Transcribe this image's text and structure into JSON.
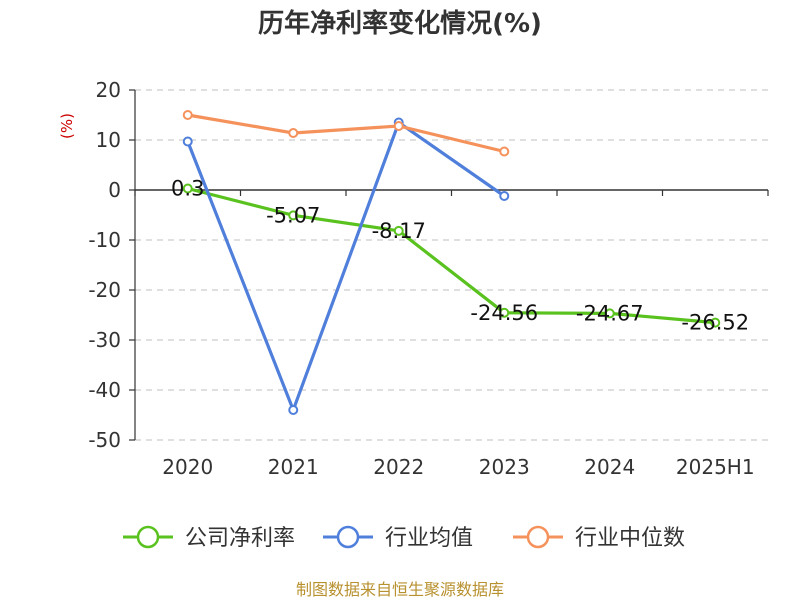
{
  "chart_data": {
    "type": "line",
    "title": "历年净利率变化情况(%)",
    "ylabel": "(%)",
    "categories": [
      "2020",
      "2021",
      "2022",
      "2023",
      "2024",
      "2025H1"
    ],
    "ylim": [
      -50,
      20
    ],
    "yticks": [
      20,
      10,
      0,
      -10,
      -20,
      -30,
      -40,
      -50
    ],
    "grid": true,
    "legend_position": "bottom",
    "series": [
      {
        "name": "公司净利率",
        "color": "#5ac21e",
        "values": [
          0.3,
          -5.07,
          -8.17,
          -24.56,
          -24.67,
          -26.52
        ],
        "labels": [
          "0.3",
          "-5.07",
          "-8.17",
          "-24.56",
          "-24.67",
          "-26.52"
        ]
      },
      {
        "name": "行业均值",
        "color": "#4f7fdb",
        "values": [
          9.7,
          -44,
          13.5,
          -1.2,
          null,
          null
        ]
      },
      {
        "name": "行业中位数",
        "color": "#f5925c",
        "values": [
          15,
          11.4,
          12.8,
          7.7,
          null,
          null
        ]
      }
    ]
  },
  "source": "制图数据来自恒生聚源数据库"
}
